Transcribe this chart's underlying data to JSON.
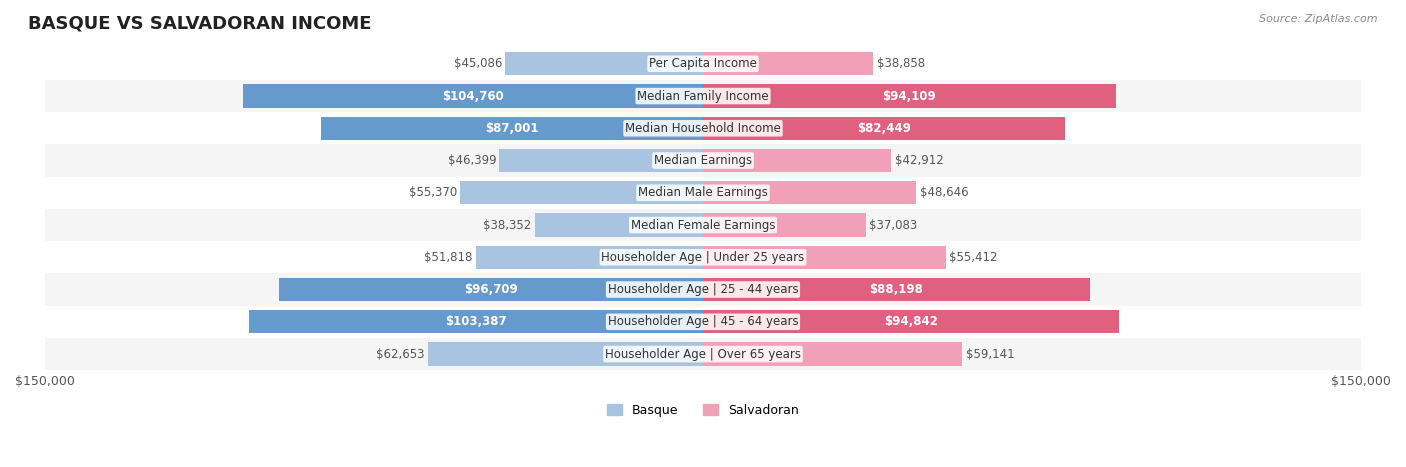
{
  "title": "BASQUE VS SALVADORAN INCOME",
  "source": "Source: ZipAtlas.com",
  "categories": [
    "Per Capita Income",
    "Median Family Income",
    "Median Household Income",
    "Median Earnings",
    "Median Male Earnings",
    "Median Female Earnings",
    "Householder Age | Under 25 years",
    "Householder Age | 25 - 44 years",
    "Householder Age | 45 - 64 years",
    "Householder Age | Over 65 years"
  ],
  "basque_values": [
    45086,
    104760,
    87001,
    46399,
    55370,
    38352,
    51818,
    96709,
    103387,
    62653
  ],
  "salvadoran_values": [
    38858,
    94109,
    82449,
    42912,
    48646,
    37083,
    55412,
    88198,
    94842,
    59141
  ],
  "basque_labels": [
    "$45,086",
    "$104,760",
    "$87,001",
    "$46,399",
    "$55,370",
    "$38,352",
    "$51,818",
    "$96,709",
    "$103,387",
    "$62,653"
  ],
  "salvadoran_labels": [
    "$38,858",
    "$94,109",
    "$82,449",
    "$42,912",
    "$48,646",
    "$37,083",
    "$55,412",
    "$88,198",
    "$94,842",
    "$59,141"
  ],
  "max_value": 150000,
  "basque_color_light": "#a8c4e0",
  "basque_color_dark": "#6699cc",
  "salvadoran_color_light": "#f0a0b8",
  "salvadoran_color_dark": "#e06080",
  "bar_bg_color": "#e8e8e8",
  "row_bg_color": "#f5f5f5",
  "row_alt_bg_color": "#ffffff",
  "title_fontsize": 13,
  "label_fontsize": 8.5,
  "category_fontsize": 8.5,
  "legend_fontsize": 9,
  "axis_fontsize": 9,
  "basque_high_threshold": 80000,
  "salvadoran_high_threshold": 80000
}
